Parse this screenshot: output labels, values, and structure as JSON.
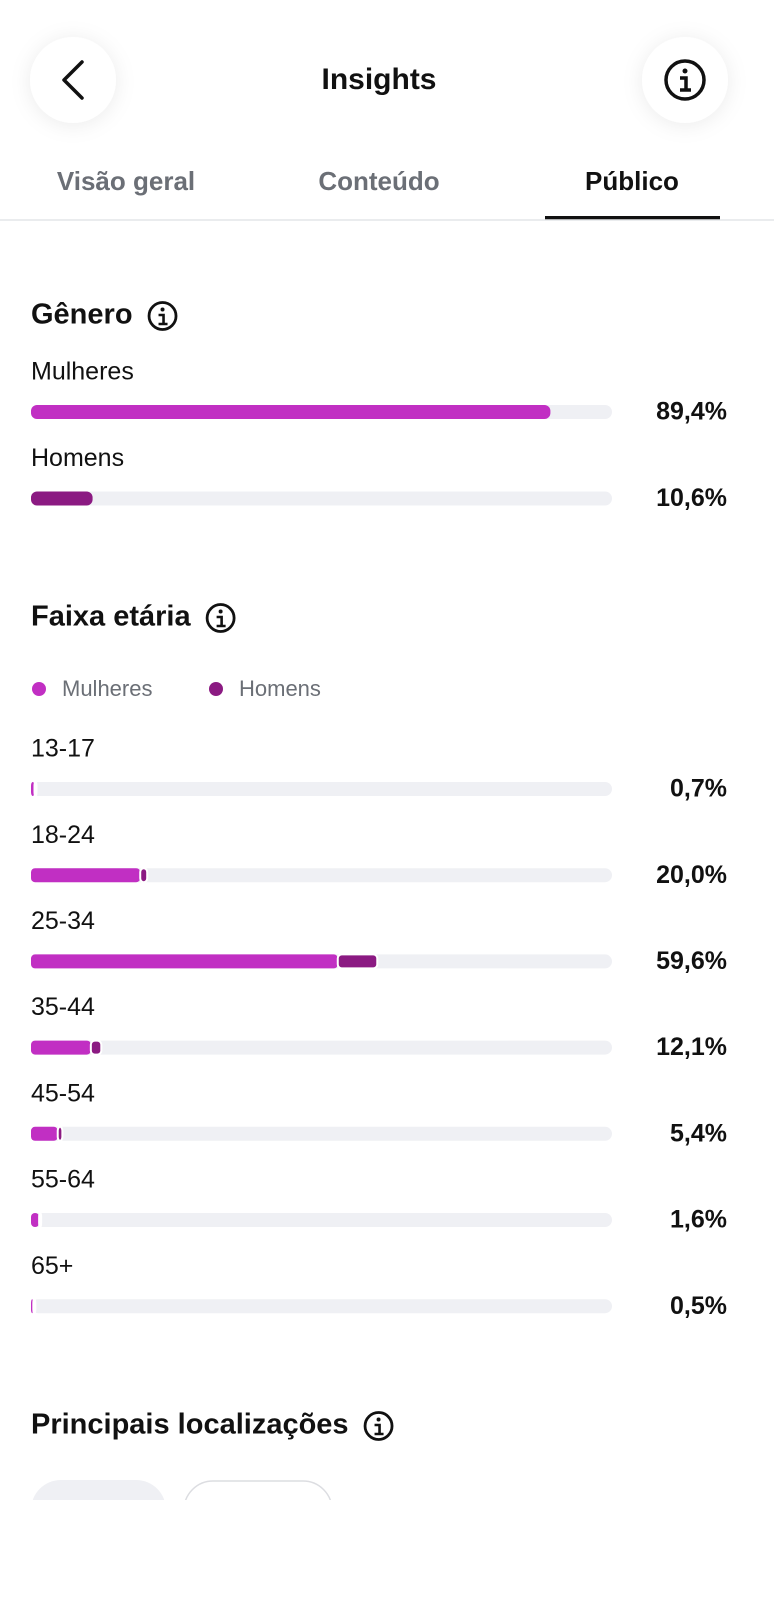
{
  "header": {
    "title": "Insights"
  },
  "tabs": [
    "Visão geral",
    "Conteúdo",
    "Público"
  ],
  "active_tab": 2,
  "gender": {
    "title": "Gênero",
    "xlim": [
      0,
      100
    ],
    "categories": [
      "Mulheres",
      "Homens"
    ],
    "values": [
      89.4,
      10.6
    ],
    "value_labels": [
      "89,4%",
      "10,6%"
    ],
    "colors": [
      "#c12fc3",
      "#8b1a82"
    ]
  },
  "age": {
    "title": "Faixa etária",
    "xlim": [
      0,
      100
    ],
    "categories": [
      "13-17",
      "18-24",
      "25-34",
      "35-44",
      "45-54",
      "55-64",
      "65+"
    ],
    "totals": [
      0.7,
      20.0,
      59.6,
      12.1,
      5.4,
      1.6,
      0.5
    ],
    "value_labels": [
      "0,7%",
      "20,0%",
      "59,6%",
      "12,1%",
      "5,4%",
      "1,6%",
      "0,5%"
    ],
    "series": [
      {
        "name": "Mulheres",
        "color": "#c12fc3",
        "values": [
          0.6,
          18.8,
          52.8,
          10.3,
          4.6,
          1.4,
          0.4
        ]
      },
      {
        "name": "Homens",
        "color": "#8b1a82",
        "values": [
          0.1,
          1.2,
          6.8,
          1.8,
          0.8,
          0.2,
          0.1
        ]
      }
    ]
  },
  "locations": {
    "title": "Principais localizações"
  }
}
